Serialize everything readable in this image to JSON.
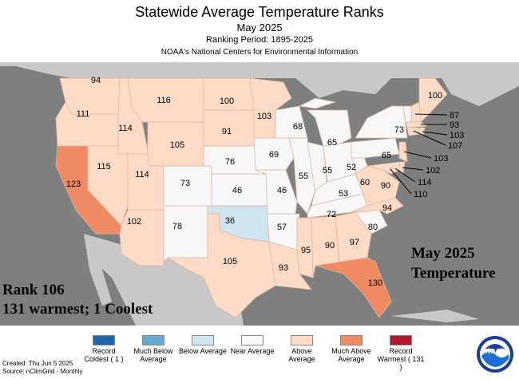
{
  "header": {
    "title": "Statewide Average Temperature Ranks",
    "subtitle": "May 2025",
    "period": "Ranking Period: 1895-2025",
    "source": "NOAA's National Centers for Environmental Information"
  },
  "colors": {
    "record_coldest": "#2166ac",
    "much_below": "#67a9cf",
    "below": "#d1e5f0",
    "near": "#f7f7f7",
    "above": "#fddbc7",
    "much_above": "#ef8a62",
    "record_warmest": "#b2182b",
    "water": "#7f7f7f",
    "land_outside": "#c8c8c8"
  },
  "states": [
    {
      "code": "WA",
      "rank": "94",
      "cat": "above"
    },
    {
      "code": "OR",
      "rank": "111",
      "cat": "above"
    },
    {
      "code": "CA",
      "rank": "123",
      "cat": "much_above"
    },
    {
      "code": "NV",
      "rank": "115",
      "cat": "above"
    },
    {
      "code": "ID",
      "rank": "114",
      "cat": "above"
    },
    {
      "code": "MT",
      "rank": "116",
      "cat": "above"
    },
    {
      "code": "WY",
      "rank": "105",
      "cat": "above"
    },
    {
      "code": "UT",
      "rank": "114",
      "cat": "above"
    },
    {
      "code": "AZ",
      "rank": "102",
      "cat": "above"
    },
    {
      "code": "CO",
      "rank": "73",
      "cat": "near"
    },
    {
      "code": "NM",
      "rank": "78",
      "cat": "near"
    },
    {
      "code": "ND",
      "rank": "100",
      "cat": "above"
    },
    {
      "code": "SD",
      "rank": "91",
      "cat": "above"
    },
    {
      "code": "NE",
      "rank": "76",
      "cat": "near"
    },
    {
      "code": "KS",
      "rank": "46",
      "cat": "near"
    },
    {
      "code": "OK",
      "rank": "36",
      "cat": "below"
    },
    {
      "code": "TX",
      "rank": "105",
      "cat": "above"
    },
    {
      "code": "MN",
      "rank": "103",
      "cat": "above"
    },
    {
      "code": "IA",
      "rank": "69",
      "cat": "near"
    },
    {
      "code": "MO",
      "rank": "46",
      "cat": "near"
    },
    {
      "code": "AR",
      "rank": "57",
      "cat": "near"
    },
    {
      "code": "LA",
      "rank": "93",
      "cat": "above"
    },
    {
      "code": "WI",
      "rank": "68",
      "cat": "near"
    },
    {
      "code": "IL",
      "rank": "55",
      "cat": "near"
    },
    {
      "code": "MI",
      "rank": "65",
      "cat": "near"
    },
    {
      "code": "IN",
      "rank": "55",
      "cat": "near"
    },
    {
      "code": "OH",
      "rank": "52",
      "cat": "near"
    },
    {
      "code": "KY",
      "rank": "53",
      "cat": "near"
    },
    {
      "code": "TN",
      "rank": "72",
      "cat": "near"
    },
    {
      "code": "MS",
      "rank": "95",
      "cat": "above"
    },
    {
      "code": "AL",
      "rank": "90",
      "cat": "above"
    },
    {
      "code": "GA",
      "rank": "97",
      "cat": "above"
    },
    {
      "code": "FL",
      "rank": "130",
      "cat": "much_above"
    },
    {
      "code": "SC",
      "rank": "80",
      "cat": "near"
    },
    {
      "code": "NC",
      "rank": "94",
      "cat": "above"
    },
    {
      "code": "VA",
      "rank": "90",
      "cat": "above"
    },
    {
      "code": "WV",
      "rank": "60",
      "cat": "near"
    },
    {
      "code": "PA",
      "rank": "65",
      "cat": "near"
    },
    {
      "code": "NY",
      "rank": "73",
      "cat": "near"
    },
    {
      "code": "VT",
      "rank": "",
      "cat": "near"
    },
    {
      "code": "NH",
      "rank": "",
      "cat": "above"
    },
    {
      "code": "ME",
      "rank": "100",
      "cat": "above"
    },
    {
      "code": "MA",
      "rank": "93",
      "cat": "above"
    },
    {
      "code": "RI",
      "rank": "103",
      "cat": "above"
    },
    {
      "code": "CT",
      "rank": "107",
      "cat": "above"
    },
    {
      "code": "NJ",
      "rank": "103",
      "cat": "above"
    },
    {
      "code": "DE",
      "rank": "102",
      "cat": "above"
    },
    {
      "code": "MD",
      "rank": "114",
      "cat": "above"
    },
    {
      "code": "DC",
      "rank": "110",
      "cat": "above"
    }
  ],
  "callouts": {
    "NH": "87",
    "MA": "93",
    "RI": "103",
    "CT": "107",
    "NJ": "103",
    "DE": "102",
    "MD": "114",
    "DC": "110"
  },
  "overlay": {
    "rank_line": "Rank 106",
    "summary_line": "131 warmest; 1 Coolest",
    "period_line": "May 2025",
    "variable_line": "Temperature"
  },
  "legend": [
    {
      "label": "Record Coldest ( 1 )",
      "cat": "record_coldest"
    },
    {
      "label": "Much Below Average",
      "cat": "much_below"
    },
    {
      "label": "Below Average",
      "cat": "below"
    },
    {
      "label": "Near Average",
      "cat": "near"
    },
    {
      "label": "Above Average",
      "cat": "above"
    },
    {
      "label": "Much Above Average",
      "cat": "much_above"
    },
    {
      "label": "Record Warmest ( 131 )",
      "cat": "record_warmest"
    }
  ],
  "footer": {
    "created": "Created: Thu Jun  5 2025",
    "source": "Source: nClimGrid - Monthly"
  },
  "logo": {
    "text": "NOAA",
    "icon": "noaa-logo-icon"
  }
}
